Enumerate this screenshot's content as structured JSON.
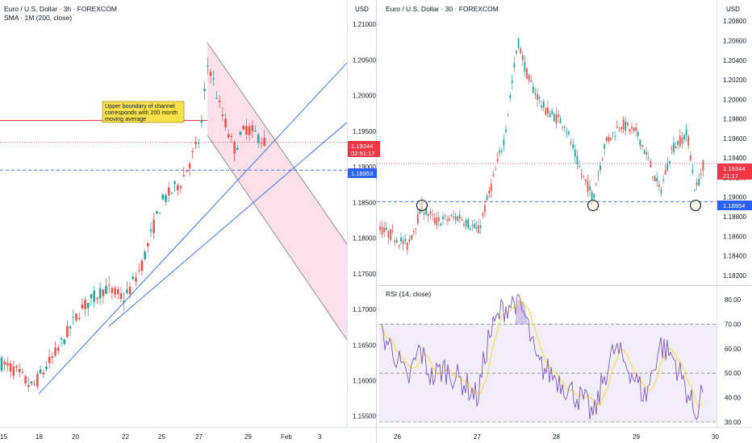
{
  "left_panel": {
    "title": "Euro / U.S. Dollar · 3h · FOREXCOM",
    "indicator": "SMA · 1M (200, close)",
    "currency": "USD",
    "price_badge": "1.19344",
    "countdown": "02:51:17",
    "level_badge": "1.18953",
    "annotation": [
      "Upper boundary of channel",
      "corresponds with 200 month",
      "moving average"
    ]
  },
  "right_panel": {
    "title": "Euro / U.S. Dollar · 30 · FOREXCOM",
    "currency": "USD",
    "price_badge": "1.19344",
    "countdown": "21:17",
    "level_badge": "1.18954"
  },
  "rsi_panel": {
    "title": "RSI (14, close)"
  },
  "colors": {
    "up": "#26a69a",
    "down": "#ef5350",
    "trend": "#2962ff",
    "sma": "#f23645",
    "rsi": "#7e57c2",
    "rsi_ma": "#fdd835",
    "badge_blue": "#2962ff",
    "badge_red": "#f23645"
  },
  "chart_data": [
    {
      "type": "line",
      "title": "Euro / U.S. Dollar · 3h · FOREXCOM",
      "ylabel": "USD",
      "ylim": [
        1.1535,
        1.2125
      ],
      "y_ticks": [
        "1.21000",
        "1.20500",
        "1.20000",
        "1.19500",
        "1.19000",
        "1.18500",
        "1.18000",
        "1.17500",
        "1.17000",
        "1.16500",
        "1.16000",
        "1.15500"
      ],
      "x_ticks": [
        "15",
        "18",
        "20",
        "22",
        "25",
        "27",
        "29",
        "Feb",
        "3"
      ],
      "series": [
        {
          "x": [
            "15",
            "16",
            "18",
            "19",
            "20",
            "21",
            "22",
            "23",
            "25",
            "26",
            "27",
            "27.5",
            "28",
            "29",
            "29.5"
          ],
          "values": [
            1.162,
            1.161,
            1.1585,
            1.164,
            1.169,
            1.1735,
            1.17,
            1.176,
            1.186,
            1.187,
            1.205,
            1.196,
            1.192,
            1.195,
            1.1934
          ]
        }
      ],
      "levels": {
        "sma_200m": 1.1965,
        "current_price": 1.19344,
        "support": 1.18953
      }
    },
    {
      "type": "line",
      "title": "Euro / U.S. Dollar · 30 · FOREXCOM",
      "ylabel": "USD",
      "ylim": [
        1.181,
        1.2095
      ],
      "y_ticks": [
        "1.20800",
        "1.20600",
        "1.20400",
        "1.20200",
        "1.20000",
        "1.19800",
        "1.19600",
        "1.19400",
        "1.19200",
        "1.19000",
        "1.18800",
        "1.18600",
        "1.18400",
        "1.18200"
      ],
      "x_ticks": [
        "26",
        "27",
        "28",
        "29",
        "30"
      ],
      "series": [
        {
          "x": [
            "26",
            "26.3",
            "26.6",
            "26.9",
            "27",
            "27.3",
            "27.5",
            "27.8",
            "28",
            "28.2",
            "28.4",
            "28.5",
            "28.8",
            "29",
            "29.2",
            "29.5",
            "29.7",
            "29.8"
          ],
          "values": [
            1.1865,
            1.1872,
            1.188,
            1.1868,
            1.1895,
            1.196,
            1.204,
            1.199,
            1.1985,
            1.196,
            1.1925,
            1.1898,
            1.1975,
            1.1985,
            1.196,
            1.197,
            1.1905,
            1.19344
          ]
        }
      ],
      "levels": {
        "current_price": 1.19344,
        "support": 1.18954
      }
    },
    {
      "type": "line",
      "title": "RSI (14, close)",
      "ylim": [
        28,
        84
      ],
      "y_ticks": [
        "80.00",
        "70.00",
        "60.00",
        "50.00",
        "40.00",
        "30.00"
      ],
      "bands": [
        30,
        50,
        70
      ],
      "series": [
        {
          "x": [
            "26",
            "26.3",
            "26.6",
            "26.9",
            "27",
            "27.3",
            "27.5",
            "27.8",
            "28",
            "28.2",
            "28.4",
            "28.5",
            "28.8",
            "29",
            "29.2",
            "29.5",
            "29.7",
            "29.8"
          ],
          "values": [
            66,
            52,
            48,
            60,
            44,
            58,
            80,
            62,
            55,
            50,
            44,
            31,
            60,
            64,
            45,
            58,
            33,
            46
          ]
        }
      ]
    }
  ]
}
